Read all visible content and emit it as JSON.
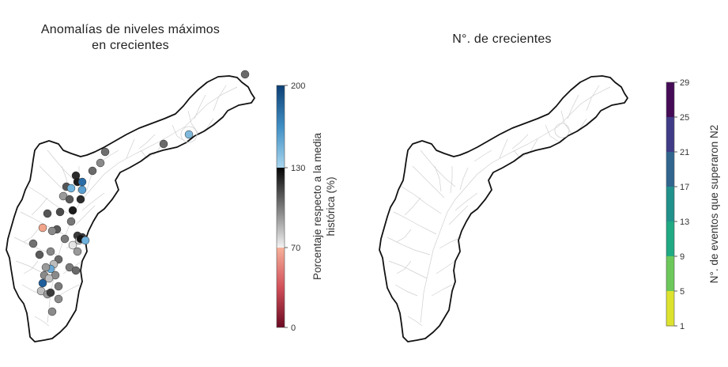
{
  "left_panel": {
    "title_line1": "Anomalías de niveles máximos",
    "title_line2": "en crecientes",
    "colorbar": {
      "label_line1": "Porcentaje respecto a la media",
      "label_line2": "histórica (%)",
      "ticks": [
        "200",
        "130",
        "70",
        "0"
      ],
      "colors": {
        "blue_dark": "#0b3f74",
        "blue_light": "#9fd0ea",
        "black": "#111111",
        "white": "#f2f2f2",
        "salmon": "#f4a98e",
        "red_dark": "#6b0a22"
      }
    }
  },
  "right_panel": {
    "title": "N°. de crecientes",
    "colorbar": {
      "label": "N°. de eventos que superaron N2",
      "ticks": [
        "29",
        "25",
        "21",
        "17",
        "13",
        "9",
        "5",
        "1"
      ],
      "bins": [
        "#450b57",
        "#3f3b87",
        "#31658e",
        "#21918c",
        "#1faa83",
        "#6cc85a",
        "#dde22e"
      ]
    }
  },
  "map_points": {
    "left": [
      {
        "c": "#6b6b6b"
      },
      {
        "c": "#6a6a6a"
      },
      {
        "c": "#80b9dc"
      },
      {
        "c": "#6f6f6f"
      },
      {
        "c": "#8a8a8a"
      },
      {
        "c": "#6a6a6a"
      },
      {
        "c": "#2a2a2a"
      },
      {
        "c": "#1b1b1b"
      },
      {
        "c": "#555555"
      },
      {
        "c": "#2a6ca6"
      },
      {
        "c": "#6fb3de"
      },
      {
        "c": "#5a9fd0"
      },
      {
        "c": "#2b2b2b"
      },
      {
        "c": "#9a9a9a"
      },
      {
        "c": "#585858"
      },
      {
        "c": "#4a4a4a"
      },
      {
        "c": "#1a1a1a"
      },
      {
        "c": "#555555"
      },
      {
        "c": "#777777"
      },
      {
        "c": "#3a3a3a"
      },
      {
        "c": "#5a5a5a"
      },
      {
        "c": "#8a8a8a"
      },
      {
        "c": "#f1a48a"
      },
      {
        "c": "#7a7a7a"
      },
      {
        "c": "#e6e6e6"
      },
      {
        "c": "#c8c8c8"
      },
      {
        "c": "#707070"
      },
      {
        "c": "#5a5a5a"
      },
      {
        "c": "#888888"
      },
      {
        "c": "#3a3a3a"
      },
      {
        "c": "#151515"
      },
      {
        "c": "#6fb1dd"
      },
      {
        "c": "#999999"
      },
      {
        "c": "#6a6a6a"
      },
      {
        "c": "#7a7a7a"
      },
      {
        "c": "#bdbdbd"
      },
      {
        "c": "#6aa9d6"
      },
      {
        "c": "#9a9a9a"
      },
      {
        "c": "#8a8a8a"
      },
      {
        "c": "#8a8a8a"
      },
      {
        "c": "#1e5e9a"
      },
      {
        "c": "#c0c0c0"
      },
      {
        "c": "#bdbdbd"
      },
      {
        "c": "#9a9a9a"
      },
      {
        "c": "#8c8c8c"
      },
      {
        "c": "#3c3c3c"
      },
      {
        "c": "#6a6a6a"
      },
      {
        "c": "#7a7a7a"
      },
      {
        "c": "#8a8a8a"
      }
    ],
    "right": [
      {
        "c": "#3b0a4f"
      },
      {
        "c": "#4a0b58"
      },
      {
        "c": "#a8a8a8"
      },
      {
        "c": "#c6c6c6"
      },
      {
        "c": "#1fa98a"
      },
      {
        "c": "#26a88a"
      },
      {
        "c": "#6cc85a"
      },
      {
        "c": "#7acb57"
      },
      {
        "c": "#6cc85a"
      },
      {
        "c": "#8fd14a"
      },
      {
        "c": "#6cc85a"
      },
      {
        "c": "#7acb57"
      },
      {
        "c": "#6cc85a"
      },
      {
        "c": "#c8c8c8"
      },
      {
        "c": "#dde22e"
      },
      {
        "c": "#dde22e"
      },
      {
        "c": "#d8df30"
      },
      {
        "c": "#e0e33a"
      },
      {
        "c": "#6cc85a"
      },
      {
        "c": "#3f3b87"
      },
      {
        "c": "#6cc85a"
      },
      {
        "c": "#cfcfcf"
      },
      {
        "c": "#dde22e"
      },
      {
        "c": "#d9df2e"
      },
      {
        "c": "#dde22e"
      },
      {
        "c": "#2b7c8c"
      },
      {
        "c": "#6cc85a"
      },
      {
        "c": "#1fa98a"
      },
      {
        "c": "#dde22e"
      },
      {
        "c": "#e4e55a"
      },
      {
        "c": "#21998a"
      },
      {
        "c": "#42305f"
      },
      {
        "c": "#6cc85a"
      },
      {
        "c": "#dde22e"
      },
      {
        "c": "#6cc85a"
      },
      {
        "c": "#d6dc33"
      },
      {
        "c": "#b9b9b9"
      },
      {
        "c": "#dde22e"
      },
      {
        "c": "#dde22e"
      },
      {
        "c": "#7acb57"
      },
      {
        "c": "#6cc85a"
      },
      {
        "c": "#21a287"
      },
      {
        "c": "#bcbcbc"
      },
      {
        "c": "#b0b0b0"
      },
      {
        "c": "#c2c2c2"
      },
      {
        "c": "#dde22e"
      },
      {
        "c": "#dde22e"
      },
      {
        "c": "#c3c3c3"
      },
      {
        "c": "#a8a8a8"
      },
      {
        "c": "#b6b6b6"
      },
      {
        "c": "#1fa98a"
      }
    ]
  }
}
